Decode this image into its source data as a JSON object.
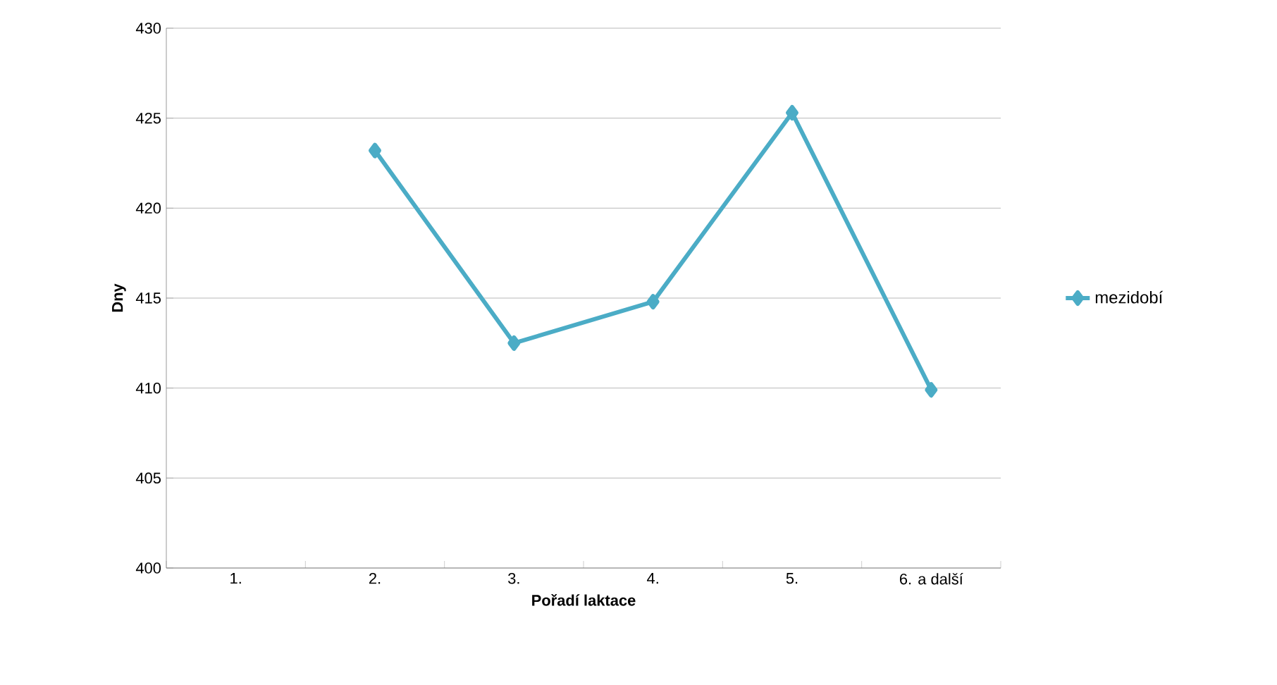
{
  "chart_data": {
    "type": "line",
    "xlabel": "Pořadí laktace",
    "ylabel": "Dny",
    "categories": [
      "1.",
      "2.",
      "3.",
      "4.",
      "5.",
      "6. a další"
    ],
    "series": [
      {
        "name": "mezidobí",
        "color": "#4bacc6",
        "values": [
          null,
          423.2,
          412.5,
          414.8,
          425.3,
          409.9
        ]
      }
    ],
    "ylim": [
      400,
      430
    ],
    "yticks": [
      400,
      405,
      410,
      415,
      420,
      425,
      430
    ],
    "grid": "y",
    "legend": "right",
    "marker": "diamond",
    "line_style": "solid"
  }
}
